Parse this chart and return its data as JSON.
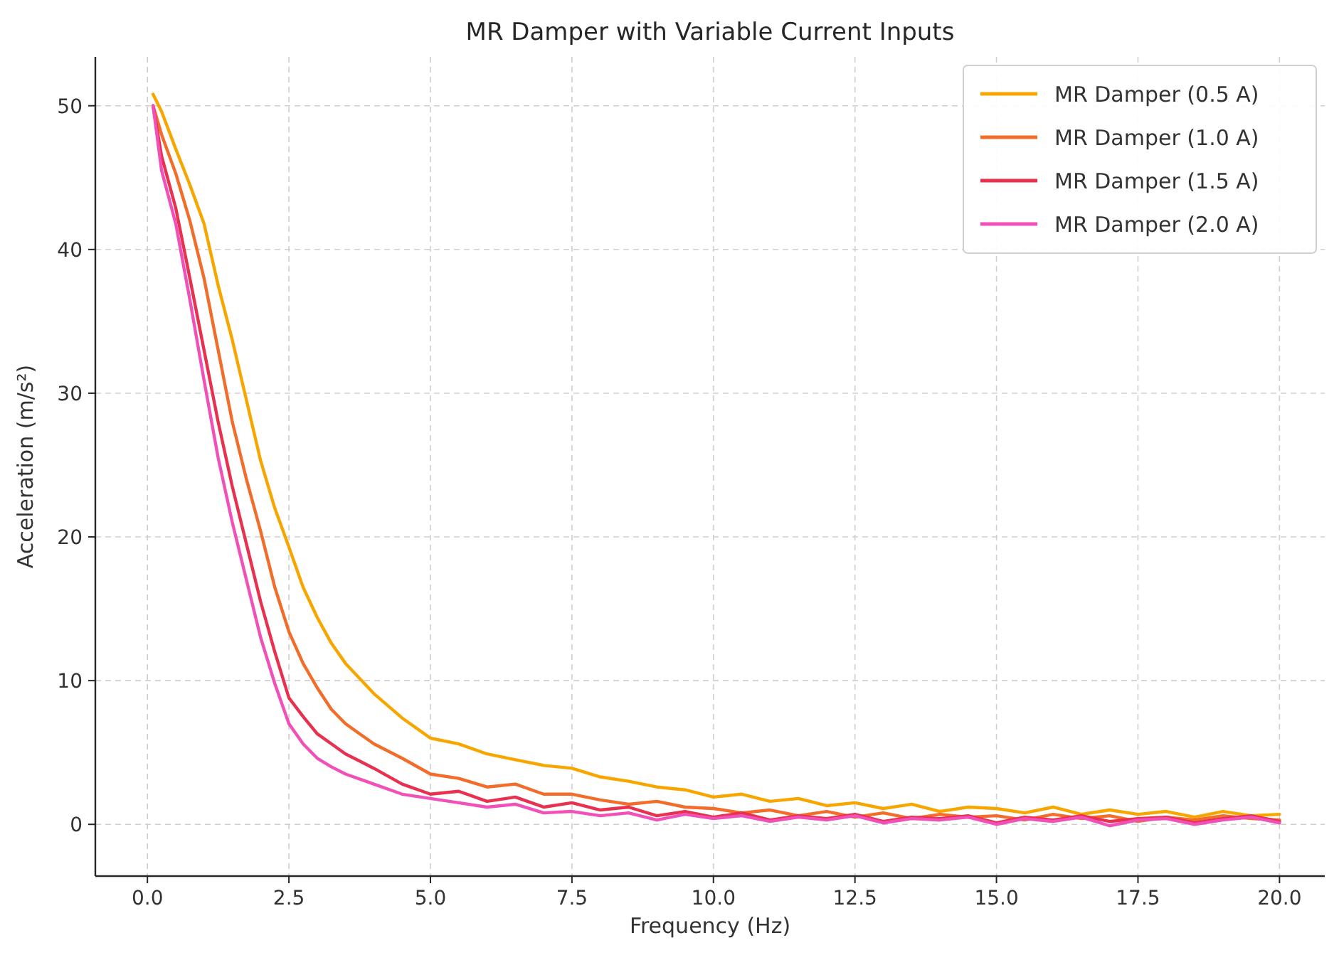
{
  "chart_data": {
    "type": "line",
    "title": "MR Damper with Variable Current Inputs",
    "xlabel": "Frequency (Hz)",
    "ylabel": "Acceleration (m/s²)",
    "x": [
      0.1,
      0.25,
      0.5,
      0.75,
      1,
      1.25,
      1.5,
      1.75,
      2,
      2.25,
      2.5,
      2.75,
      3,
      3.25,
      3.5,
      4,
      4.5,
      5,
      5.5,
      6,
      6.5,
      7,
      7.5,
      8,
      8.5,
      9,
      9.5,
      10,
      10.5,
      11,
      11.5,
      12,
      12.5,
      13,
      13.5,
      14,
      14.5,
      15,
      15.5,
      16,
      16.5,
      17,
      17.5,
      18,
      18.5,
      19,
      19.5,
      20
    ],
    "series": [
      {
        "name": "MR Damper (0.5 A)",
        "color": "#f7a600",
        "values": [
          50.8,
          49.6,
          47,
          44.5,
          41.8,
          37.5,
          33.7,
          29.5,
          25.3,
          22,
          19.3,
          16.5,
          14.4,
          12.6,
          11.2,
          9.1,
          7.4,
          6,
          5.6,
          4.9,
          4.5,
          4.1,
          3.9,
          3.3,
          3,
          2.6,
          2.4,
          1.9,
          2.1,
          1.6,
          1.8,
          1.3,
          1.5,
          1.1,
          1.4,
          0.9,
          1.2,
          1.1,
          0.8,
          1.2,
          0.7,
          1,
          0.7,
          0.9,
          0.5,
          0.9,
          0.6,
          0.7
        ]
      },
      {
        "name": "MR Damper (1.0 A)",
        "color": "#f26c2a",
        "values": [
          50,
          48,
          45.3,
          42,
          38,
          33,
          28,
          24,
          20.4,
          16.5,
          13.4,
          11.2,
          9.5,
          8,
          7,
          5.6,
          4.6,
          3.5,
          3.2,
          2.6,
          2.8,
          2.1,
          2.1,
          1.7,
          1.4,
          1.6,
          1.2,
          1.1,
          0.8,
          1,
          0.6,
          0.9,
          0.5,
          0.8,
          0.4,
          0.7,
          0.5,
          0.6,
          0.3,
          0.7,
          0.4,
          0.6,
          0.2,
          0.5,
          0.3,
          0.6,
          0.4,
          0.3
        ]
      },
      {
        "name": "MR Damper (1.5 A)",
        "color": "#e8304f",
        "values": [
          50,
          46.5,
          42.9,
          38,
          33,
          28,
          23.5,
          19.5,
          15.5,
          12,
          8.8,
          7.5,
          6.3,
          5.6,
          4.9,
          3.9,
          2.8,
          2.1,
          2.3,
          1.6,
          1.9,
          1.2,
          1.5,
          1,
          1.2,
          0.6,
          0.9,
          0.5,
          0.8,
          0.3,
          0.6,
          0.4,
          0.7,
          0.2,
          0.5,
          0.4,
          0.6,
          0.1,
          0.5,
          0.3,
          0.6,
          0.2,
          0.4,
          0.5,
          0.1,
          0.4,
          0.6,
          0.2
        ]
      },
      {
        "name": "MR Damper (2.0 A)",
        "color": "#f050b8",
        "values": [
          50,
          45.5,
          41.8,
          36.5,
          30.9,
          25.5,
          21,
          17,
          13,
          9.8,
          7,
          5.6,
          4.6,
          4,
          3.5,
          2.8,
          2.1,
          1.8,
          1.5,
          1.2,
          1.4,
          0.8,
          0.9,
          0.6,
          0.8,
          0.3,
          0.7,
          0.4,
          0.6,
          0.2,
          0.5,
          0.3,
          0.6,
          0.1,
          0.4,
          0.3,
          0.5,
          0,
          0.4,
          0.2,
          0.5,
          -0.1,
          0.3,
          0.4,
          0,
          0.3,
          0.5,
          0.1
        ]
      }
    ],
    "xlim": [
      -0.92,
      20.8
    ],
    "xticks": [
      {
        "value": 0,
        "label": "0.0"
      },
      {
        "value": 2.5,
        "label": "2.5"
      },
      {
        "value": 5,
        "label": "5.0"
      },
      {
        "value": 7.5,
        "label": "7.5"
      },
      {
        "value": 10,
        "label": "10.0"
      },
      {
        "value": 12.5,
        "label": "12.5"
      },
      {
        "value": 15,
        "label": "15.0"
      },
      {
        "value": 17.5,
        "label": "17.5"
      },
      {
        "value": 20,
        "label": "20.0"
      }
    ],
    "ylim": [
      -3.6,
      53.4
    ],
    "yticks": [
      0,
      10,
      20,
      30,
      40,
      50
    ],
    "grid": true,
    "legend": "top right",
    "line_style": "solid"
  }
}
